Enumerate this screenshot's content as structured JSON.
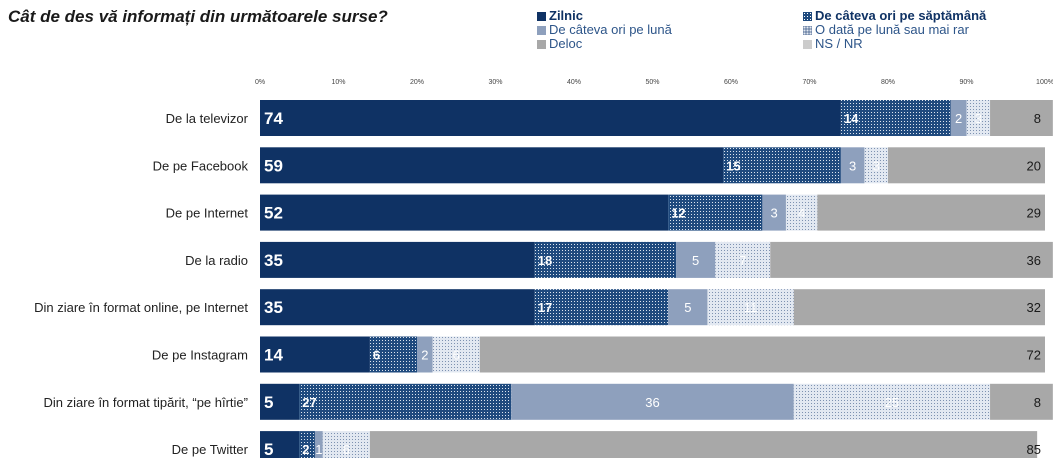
{
  "chart_data": {
    "type": "bar",
    "orientation": "horizontal",
    "stacked": true,
    "title": "Cât de des vă informați din următoarele surse?",
    "xlim": [
      0,
      100
    ],
    "ticks": [
      "0%",
      "10%",
      "20%",
      "30%",
      "40%",
      "50%",
      "60%",
      "70%",
      "80%",
      "90%",
      "100%"
    ],
    "legend_position": "top-right",
    "categories": [
      "De la televizor",
      "De pe Facebook",
      "De pe Internet",
      "De la radio",
      "Din ziare în format online, pe Internet",
      "De pe Instagram",
      "Din ziare în format tipărit, “pe hîrtie”",
      "De pe Twitter"
    ],
    "series": [
      {
        "name": "Zilnic",
        "color": "#0f3264",
        "pattern": "solid",
        "values": [
          74,
          59,
          52,
          35,
          35,
          14,
          5,
          5
        ]
      },
      {
        "name": "De câteva ori pe săptămână",
        "color": "#1f4a7e",
        "pattern": "dots-dense",
        "values": [
          14,
          15,
          12,
          18,
          17,
          6,
          27,
          2
        ]
      },
      {
        "name": "De câteva ori pe lună",
        "color": "#8ea0bd",
        "pattern": "solid",
        "values": [
          2,
          3,
          3,
          5,
          5,
          2,
          36,
          1
        ]
      },
      {
        "name": "O dată pe lună sau mai rar",
        "color": "#c3cfdf",
        "pattern": "dots-light",
        "values": [
          3,
          3,
          4,
          7,
          11,
          6,
          25,
          6
        ]
      },
      {
        "name": "Deloc",
        "color": "#a8a8a8",
        "pattern": "solid",
        "values": [
          8,
          20,
          29,
          36,
          32,
          72,
          8,
          85
        ]
      },
      {
        "name": "NS / NR",
        "color": "#cccccc",
        "pattern": "solid",
        "values": [
          0,
          0,
          0,
          0,
          0,
          0,
          0,
          0
        ]
      }
    ]
  }
}
